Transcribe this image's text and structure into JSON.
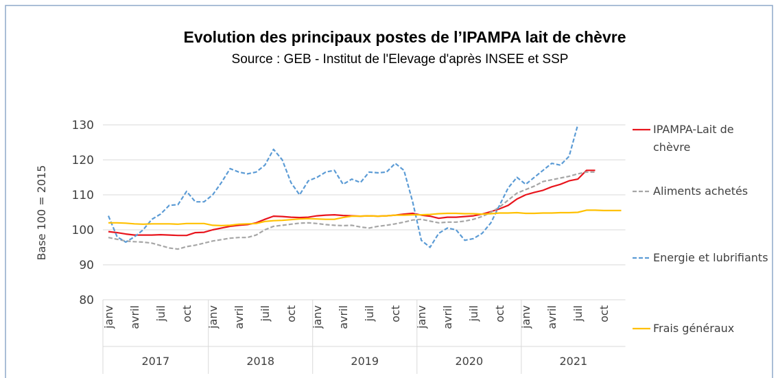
{
  "chart_data": {
    "type": "line",
    "title": "Evolution des principaux postes de l’IPAMPA lait de chèvre",
    "subtitle": "Source : GEB - Institut de l'Elevage d'après INSEE et SSP",
    "y_label": "Base 100 = 2015",
    "years": [
      "2017",
      "2018",
      "2019",
      "2020",
      "2021"
    ],
    "categories": [
      "janv",
      null,
      null,
      "avril",
      null,
      null,
      "juil",
      null,
      null,
      "oct",
      null,
      null,
      "janv",
      null,
      null,
      "avril",
      null,
      null,
      "juil",
      null,
      null,
      "oct",
      null,
      null,
      "janv",
      null,
      null,
      "avril",
      null,
      null,
      "juil",
      null,
      null,
      "oct",
      null,
      null,
      "janv",
      null,
      null,
      "avril",
      null,
      null,
      "juil",
      null,
      null,
      "oct",
      null,
      null,
      "janv",
      null,
      null,
      "avril",
      null,
      null,
      "juil",
      null,
      null,
      "oct",
      null,
      null
    ],
    "ylim": [
      80,
      130
    ],
    "yticks": [
      80,
      90,
      100,
      110,
      120,
      130
    ],
    "grid": true,
    "series": [
      {
        "name": "IPAMPA-Lait de chèvre",
        "color": "#e8141c",
        "dashed": false,
        "values": [
          99.5,
          99.2,
          98.8,
          98.5,
          98.5,
          98.5,
          98.6,
          98.5,
          98.4,
          98.4,
          99.2,
          99.3,
          100,
          100.5,
          101,
          101.3,
          101.5,
          102,
          103,
          103.9,
          103.8,
          103.6,
          103.5,
          103.6,
          104,
          104.2,
          104.3,
          104.1,
          104,
          103.9,
          104,
          103.9,
          104,
          104.2,
          104.5,
          104.7,
          104.2,
          103.9,
          103.3,
          103.6,
          103.6,
          103.8,
          104,
          104.5,
          105.2,
          106,
          107,
          108.8,
          110,
          110.7,
          111.3,
          112.3,
          113,
          114,
          114.5,
          117,
          117,
          null,
          null,
          null
        ]
      },
      {
        "name": "Aliments achetés",
        "color": "#a6a6a6",
        "dashed": true,
        "values": [
          97.8,
          97.3,
          96.8,
          96.6,
          96.5,
          96.2,
          95.5,
          94.8,
          94.5,
          95.2,
          95.6,
          96.2,
          96.8,
          97.2,
          97.6,
          97.8,
          97.8,
          98.5,
          100,
          101,
          101.3,
          101.6,
          101.9,
          102,
          101.8,
          101.5,
          101.3,
          101.2,
          101.3,
          100.8,
          100.5,
          101,
          101.3,
          101.7,
          102.2,
          102.8,
          103,
          102.5,
          102,
          102.2,
          102.2,
          102.5,
          103,
          103.8,
          105,
          106.5,
          108.5,
          110.5,
          111.5,
          112.5,
          113.8,
          114.3,
          114.8,
          115.3,
          116,
          116.5,
          116.5,
          null,
          null,
          null
        ]
      },
      {
        "name": "Energie et lubrifiants",
        "color": "#5b9bd5",
        "dashed": true,
        "values": [
          104,
          98,
          96.5,
          98,
          100,
          103,
          104.5,
          107,
          107.2,
          111,
          108,
          108,
          110,
          113.5,
          117.5,
          116.5,
          116,
          116.5,
          118.5,
          123,
          120,
          113.5,
          110,
          114,
          115,
          116.5,
          117,
          113,
          114.5,
          113.5,
          116.5,
          116.3,
          116.5,
          119,
          117,
          108,
          97,
          95,
          99,
          100.5,
          100,
          97,
          97.5,
          99,
          102,
          107,
          112,
          115,
          113,
          115,
          117,
          119,
          118.5,
          121,
          130,
          null,
          null,
          null,
          null,
          null
        ]
      },
      {
        "name": "Frais généraux",
        "color": "#ffc000",
        "dashed": false,
        "values": [
          102,
          102,
          101.9,
          101.7,
          101.6,
          101.7,
          101.7,
          101.7,
          101.6,
          101.8,
          101.8,
          101.8,
          101.3,
          101.2,
          101.3,
          101.6,
          101.7,
          101.8,
          102.4,
          102.6,
          102.7,
          102.9,
          103.1,
          103.2,
          103.1,
          103,
          103,
          103.5,
          103.9,
          103.9,
          104,
          103.9,
          104,
          104.2,
          104.2,
          104.3,
          104.3,
          104.4,
          104.6,
          104.7,
          104.7,
          104.6,
          104.6,
          104.5,
          104.6,
          104.8,
          104.8,
          104.9,
          104.7,
          104.7,
          104.8,
          104.8,
          104.9,
          104.9,
          105,
          105.6,
          105.6,
          105.5,
          105.5,
          105.5
        ]
      }
    ]
  }
}
